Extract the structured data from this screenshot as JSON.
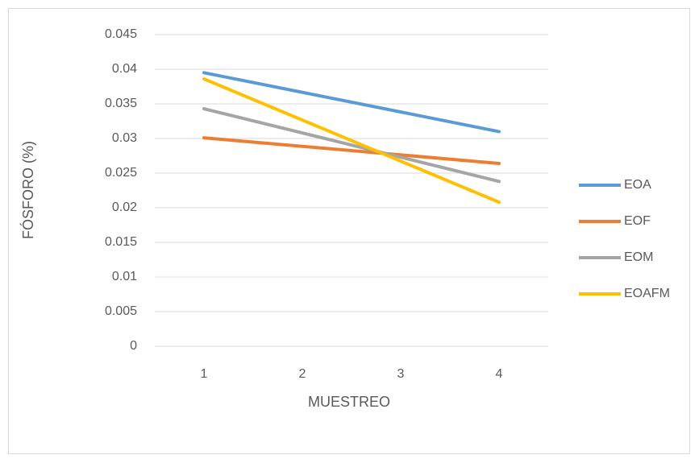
{
  "chart_data": {
    "type": "line",
    "xlabel": "MUESTREO",
    "ylabel": "FÓSFORO (%)",
    "x": [
      1,
      4
    ],
    "series": [
      {
        "name": "EOA",
        "color": "#5b9bd5",
        "values": [
          0.0395,
          0.031
        ]
      },
      {
        "name": "EOF",
        "color": "#ed7d31",
        "values": [
          0.0301,
          0.0264
        ]
      },
      {
        "name": "EOM",
        "color": "#a5a5a5",
        "values": [
          0.0343,
          0.0238
        ]
      },
      {
        "name": "EOAFM",
        "color": "#ffc000",
        "values": [
          0.0386,
          0.0208
        ]
      }
    ],
    "xlim": [
      0.5,
      4.5
    ],
    "xticks": [
      1,
      2,
      3,
      4
    ],
    "ylim": [
      0,
      0.045
    ],
    "yticks": [
      0,
      0.005,
      0.01,
      0.015,
      0.02,
      0.025,
      0.03,
      0.035,
      0.04,
      0.045
    ],
    "grid": true,
    "legend": "right"
  }
}
